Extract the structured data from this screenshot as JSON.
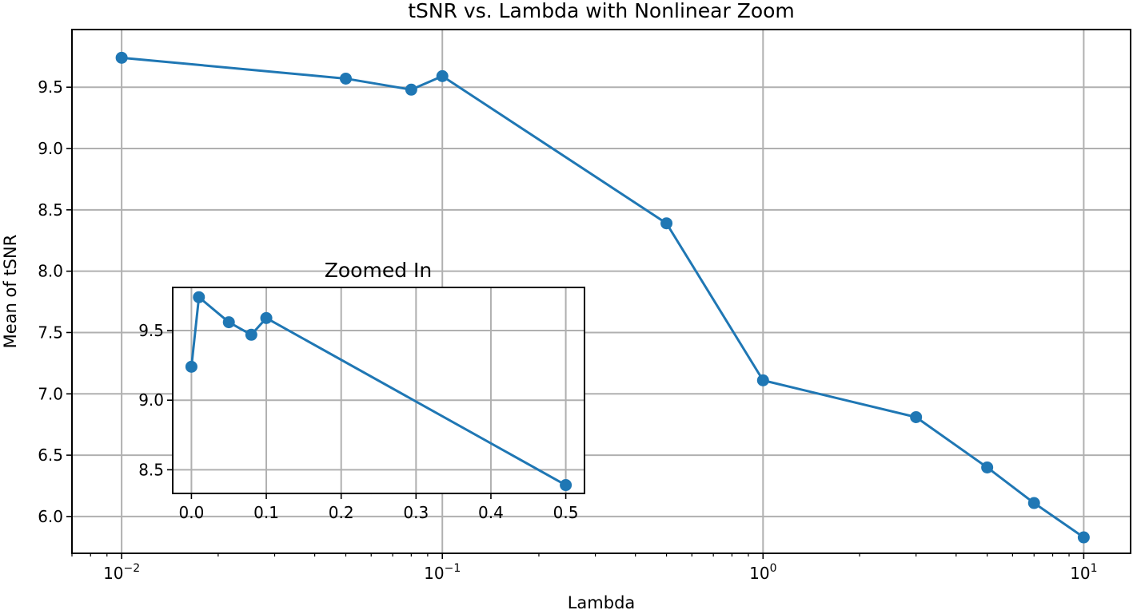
{
  "chart_data": [
    {
      "type": "line",
      "title": "tSNR vs. Lambda with Nonlinear Zoom",
      "xlabel": "Lambda",
      "ylabel": "Mean of tSNR",
      "xscale": "log",
      "xlim": [
        0.007,
        14
      ],
      "ylim": [
        5.7,
        9.97
      ],
      "grid": true,
      "color": "#1f77b4",
      "x": [
        0.01,
        0.05,
        0.08,
        0.1,
        0.5,
        1,
        3,
        5,
        7,
        10
      ],
      "y": [
        9.74,
        9.57,
        9.48,
        9.59,
        8.39,
        7.11,
        6.81,
        6.4,
        6.11,
        5.83
      ],
      "x_ticks": [
        {
          "value": 0.01,
          "base": "10",
          "exp": "−2"
        },
        {
          "value": 0.1,
          "base": "10",
          "exp": "−1"
        },
        {
          "value": 1,
          "base": "10",
          "exp": "0"
        },
        {
          "value": 10,
          "base": "10",
          "exp": "1"
        }
      ],
      "y_ticks": [
        "6.0",
        "6.5",
        "7.0",
        "7.5",
        "8.0",
        "8.5",
        "9.0",
        "9.5"
      ]
    },
    {
      "type": "line",
      "title": "Zoomed In",
      "xlim": [
        -0.025,
        0.525
      ],
      "ylim": [
        8.33,
        9.81
      ],
      "grid": true,
      "color": "#1f77b4",
      "x": [
        0.0,
        0.01,
        0.05,
        0.08,
        0.1,
        0.5
      ],
      "y": [
        9.24,
        9.74,
        9.56,
        9.47,
        9.59,
        8.39
      ],
      "x_ticks": [
        "0.0",
        "0.1",
        "0.2",
        "0.3",
        "0.4",
        "0.5"
      ],
      "y_ticks": [
        "8.5",
        "9.0",
        "9.5"
      ]
    }
  ]
}
